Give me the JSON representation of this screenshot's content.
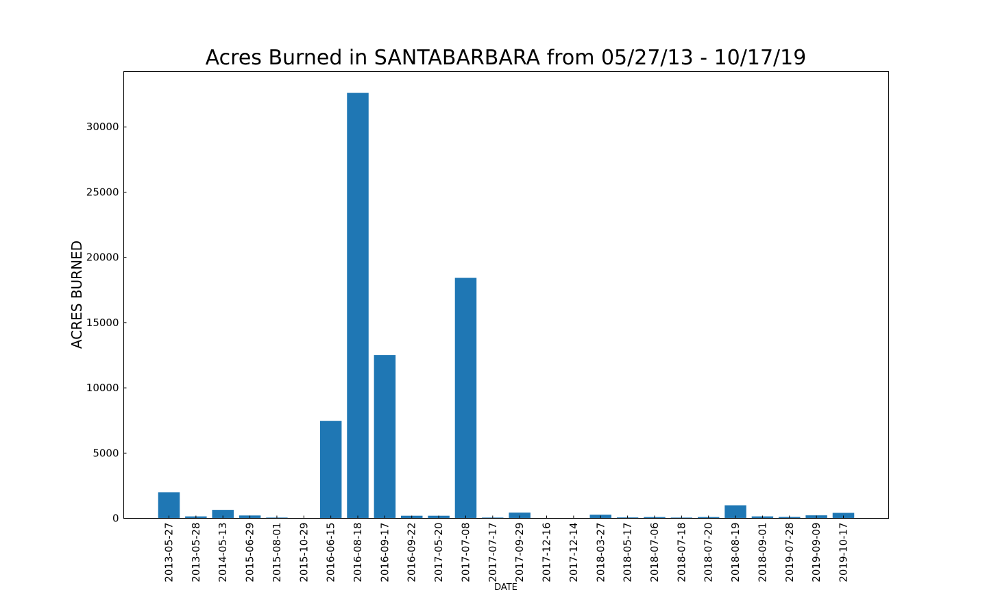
{
  "chart_data": {
    "type": "bar",
    "title": "Acres Burned in SANTABARBARA from 05/27/13 - 10/17/19",
    "xlabel": "DATE",
    "ylabel": "ACRES BURNED",
    "categories": [
      "2013-05-27",
      "2013-05-28",
      "2014-05-13",
      "2015-06-29",
      "2015-08-01",
      "2015-10-29",
      "2016-06-15",
      "2016-08-18",
      "2016-09-17",
      "2016-09-22",
      "2017-05-20",
      "2017-07-08",
      "2017-07-17",
      "2017-09-29",
      "2017-12-16",
      "2017-12-14",
      "2018-03-27",
      "2018-05-17",
      "2018-07-06",
      "2018-07-18",
      "2018-07-20",
      "2018-08-19",
      "2018-09-01",
      "2019-07-28",
      "2019-09-09",
      "2019-10-17"
    ],
    "values": [
      2000,
      150,
      650,
      220,
      60,
      0,
      7474,
      32606,
      12518,
      200,
      200,
      18430,
      60,
      440,
      0,
      0,
      280,
      70,
      100,
      60,
      100,
      1000,
      150,
      110,
      230,
      420
    ],
    "yticks": [
      0,
      5000,
      10000,
      15000,
      20000,
      25000,
      30000
    ],
    "ylim": [
      0,
      34238
    ],
    "bar_color": "#1f77b4",
    "grid": false,
    "legend": false
  }
}
